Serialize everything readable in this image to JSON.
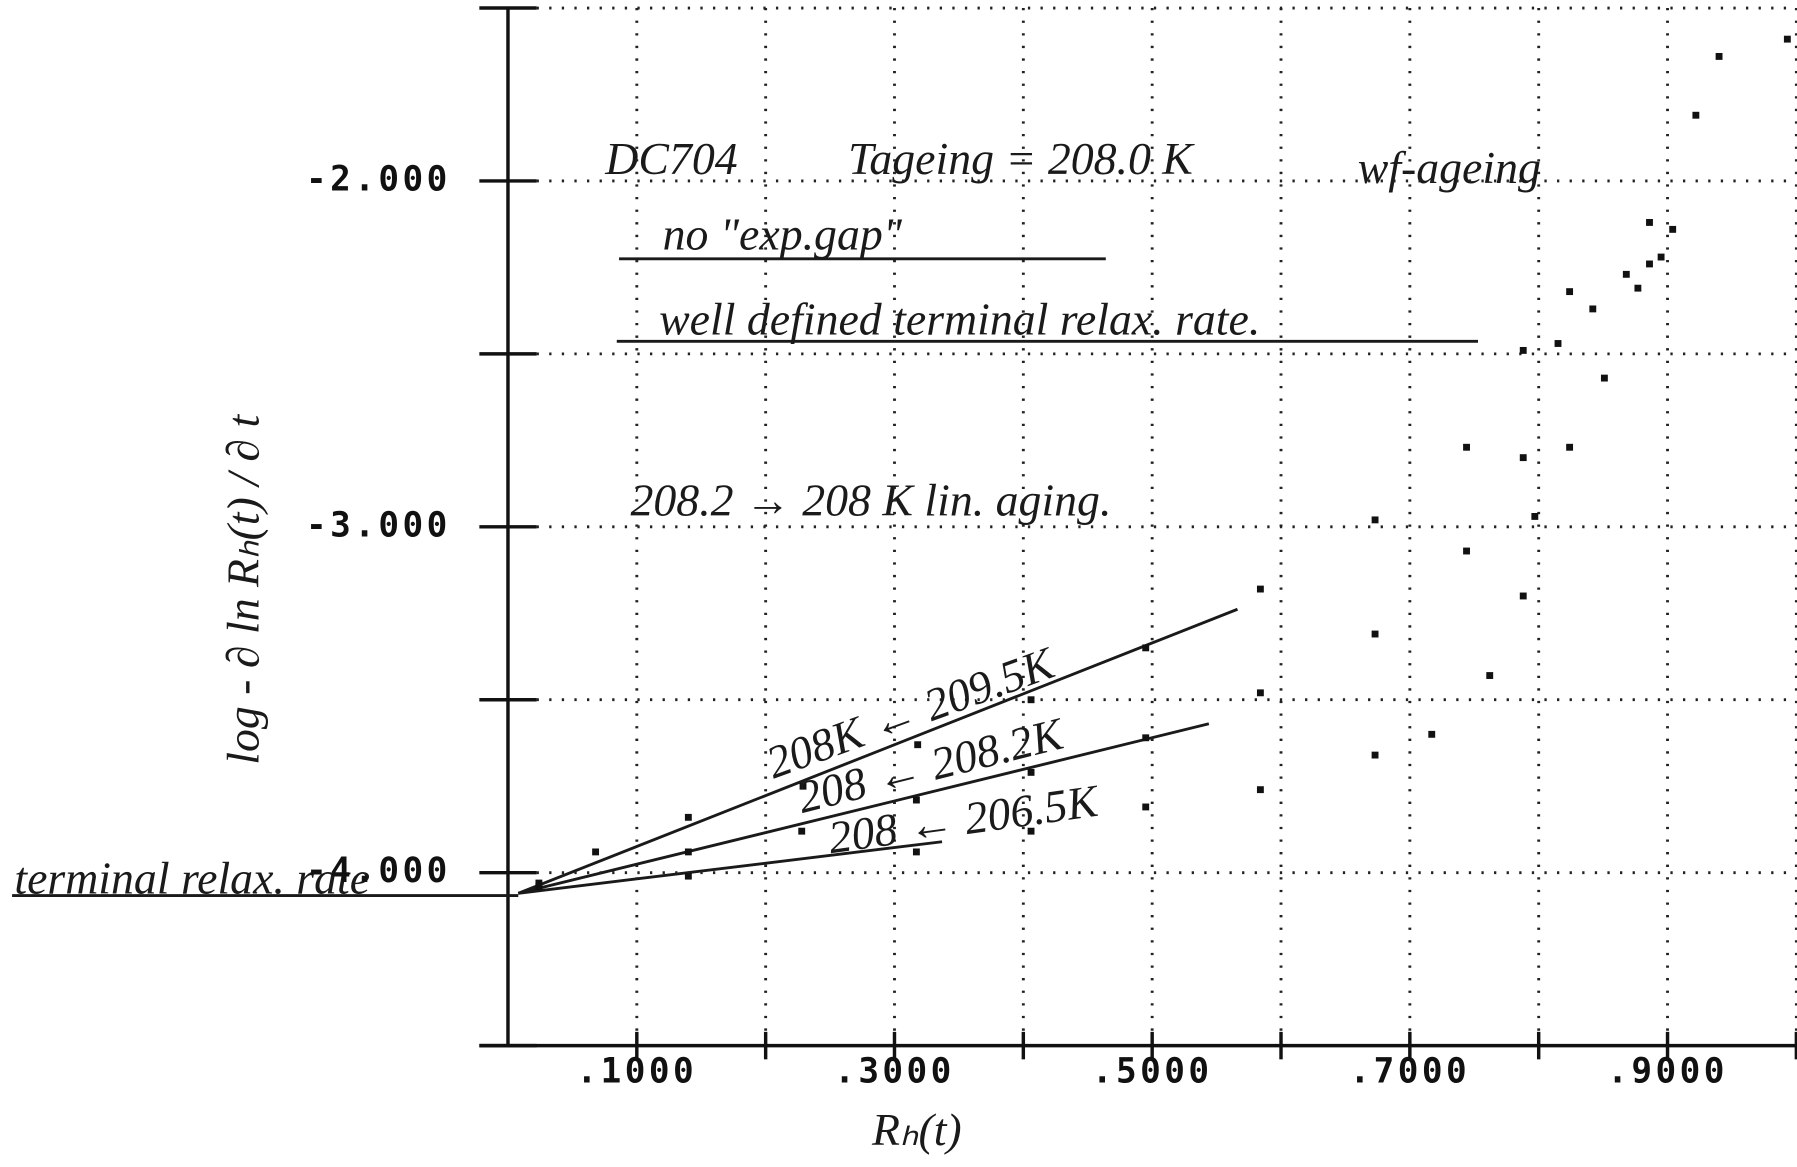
{
  "chart_data": {
    "type": "scatter",
    "xlabel": "Rₕ(t)",
    "ylabel": "log - ∂ ln Rₕ(t) / ∂ t",
    "xlim": [
      0,
      1.0
    ],
    "ylim": [
      -4.5,
      -1.5
    ],
    "xticks": [
      {
        "value": 0.1,
        "label": ".1000"
      },
      {
        "value": 0.3,
        "label": ".3000"
      },
      {
        "value": 0.5,
        "label": ".5000"
      },
      {
        "value": 0.7,
        "label": ".7000"
      },
      {
        "value": 0.9,
        "label": ".9000"
      }
    ],
    "xminor_ticks": [
      0.2,
      0.4,
      0.6,
      0.8,
      1.0
    ],
    "yticks": [
      {
        "value": -2,
        "label": "-2.000"
      },
      {
        "value": -3,
        "label": "-3.000"
      },
      {
        "value": -4,
        "label": "-4.000"
      }
    ],
    "yminor_ticks": [
      -1.5,
      -2.5,
      -3.5,
      -4.5
    ],
    "grid": true,
    "annotations": [
      "DC704",
      "Tageing = 208.0 K",
      "wf-ageing",
      "no \"exp.gap\"",
      "well defined terminal relax. rate.",
      "208.2 → 208 K lin. aging.",
      "terminal relax. rate"
    ],
    "series": [
      {
        "name": "208K ← 209.5K",
        "color": "#111111",
        "x": [
          0.024,
          0.068,
          0.14,
          0.229,
          0.318,
          0.406,
          0.495,
          0.584,
          0.673,
          0.744,
          0.788,
          0.824,
          0.886,
          0.922,
          0.94,
          0.993
        ],
        "values": [
          -4.03,
          -3.94,
          -3.84,
          -3.75,
          -3.63,
          -3.5,
          -3.35,
          -3.18,
          -2.98,
          -2.77,
          -2.49,
          -2.32,
          -2.12,
          -1.81,
          -1.64,
          -1.59
        ]
      },
      {
        "name": "208 ← 208.2K",
        "color": "#111111",
        "x": [
          0.024,
          0.14,
          0.228,
          0.317,
          0.406,
          0.495,
          0.584,
          0.673,
          0.744,
          0.788,
          0.815,
          0.842,
          0.868,
          0.895,
          0.904
        ],
        "values": [
          -4.04,
          -3.94,
          -3.88,
          -3.79,
          -3.71,
          -3.61,
          -3.48,
          -3.31,
          -3.07,
          -2.8,
          -2.47,
          -2.37,
          -2.27,
          -2.22,
          -2.14
        ]
      },
      {
        "name": "208 ← 206.5K",
        "color": "#111111",
        "x": [
          0.024,
          0.14,
          0.317,
          0.406,
          0.495,
          0.584,
          0.673,
          0.717,
          0.762,
          0.788,
          0.797,
          0.824,
          0.851,
          0.877,
          0.886
        ],
        "values": [
          -4.04,
          -4.01,
          -3.94,
          -3.88,
          -3.81,
          -3.76,
          -3.66,
          -3.6,
          -3.43,
          -3.2,
          -2.97,
          -2.77,
          -2.57,
          -2.31,
          -2.24
        ]
      }
    ]
  }
}
